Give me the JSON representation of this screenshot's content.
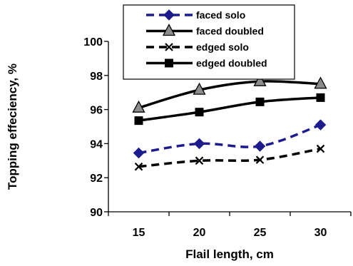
{
  "chart_data": {
    "type": "line",
    "title": "",
    "xlabel": "Flail length, cm",
    "ylabel": "Topping effeciency, %",
    "x": [
      15,
      20,
      25,
      30
    ],
    "x_tick_labels": [
      "15",
      "20",
      "25",
      "30"
    ],
    "ylim": [
      90,
      100
    ],
    "y_ticks": [
      90,
      92,
      94,
      96,
      98,
      100
    ],
    "y_tick_labels": [
      "90",
      "92",
      "94",
      "96",
      "98",
      "100"
    ],
    "grid": false,
    "legend_position": "top",
    "series": [
      {
        "name": "faced solo",
        "values": [
          93.45,
          94.0,
          93.85,
          95.1
        ],
        "color": "#1c1c8c",
        "line_style": "dashed",
        "marker": "diamond"
      },
      {
        "name": "faced doubled",
        "values": [
          96.1,
          97.15,
          97.65,
          97.5
        ],
        "color": "#000000",
        "line_style": "solid",
        "marker": "triangle"
      },
      {
        "name": "edged solo",
        "values": [
          92.65,
          93.0,
          93.05,
          93.7
        ],
        "color": "#000000",
        "line_style": "dashed",
        "marker": "x"
      },
      {
        "name": "edged doubled",
        "values": [
          95.35,
          95.85,
          96.45,
          96.7
        ],
        "color": "#000000",
        "line_style": "solid",
        "marker": "square"
      }
    ]
  }
}
